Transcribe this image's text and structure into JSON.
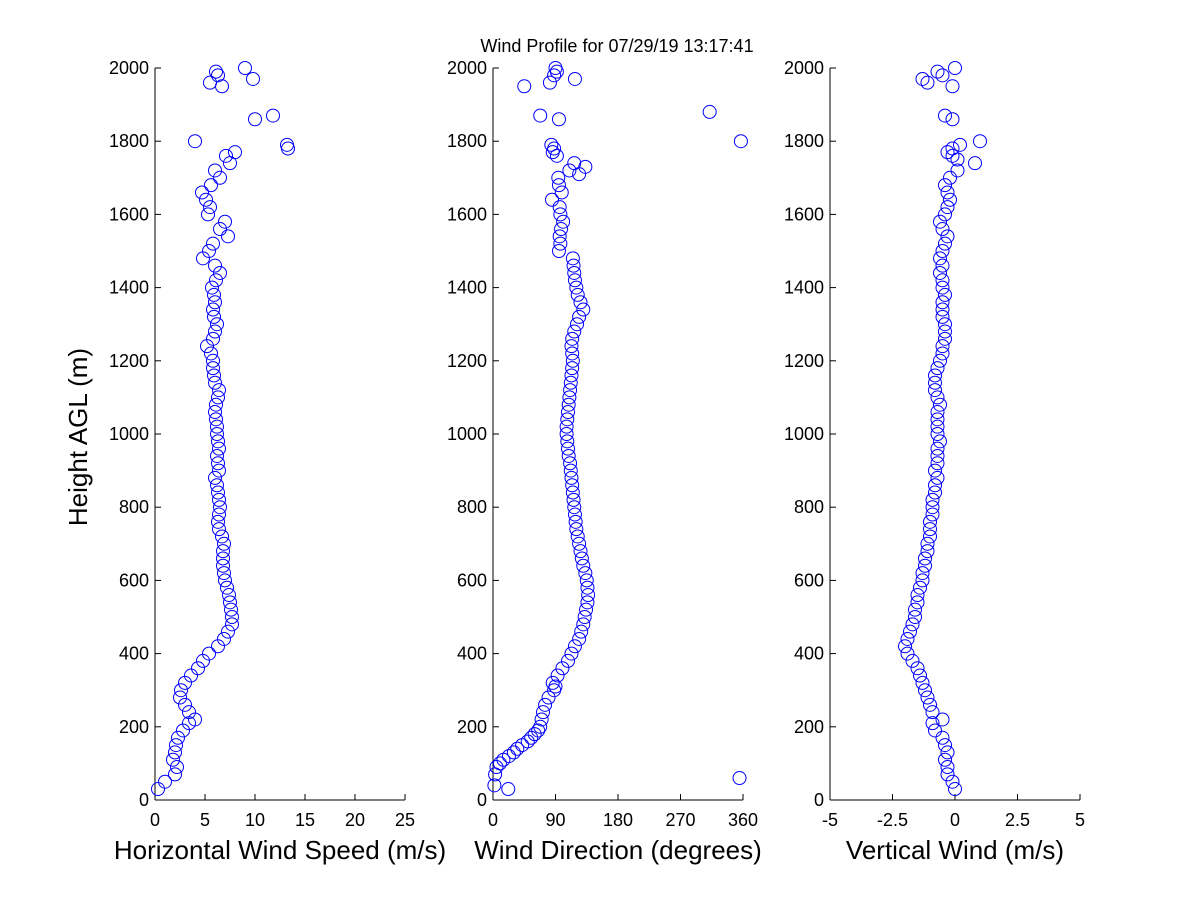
{
  "figure": {
    "title": "Wind Profile for  07/29/19 13:17:41",
    "marker_color": "#0000ff"
  },
  "chart_data": [
    {
      "type": "scatter",
      "name": "speed",
      "xlabel": "Horizontal Wind Speed (m/s)",
      "ylabel": "Height AGL (m)",
      "xlim": [
        0,
        25
      ],
      "ylim": [
        0,
        2000
      ],
      "xticks": [
        0,
        5,
        10,
        15,
        20,
        25
      ],
      "xtick_labels": [
        "0",
        "5",
        "10",
        "15",
        "20",
        "25"
      ],
      "yticks": [
        0,
        200,
        400,
        600,
        800,
        1000,
        1200,
        1400,
        1600,
        1800,
        2000
      ],
      "ytick_labels": [
        "0",
        "200",
        "400",
        "600",
        "800",
        "1000",
        "1200",
        "1400",
        "1600",
        "1800",
        "2000"
      ],
      "grid": false,
      "profile": [
        [
          30,
          0.3
        ],
        [
          50,
          1.0
        ],
        [
          70,
          2.0
        ],
        [
          90,
          2.2
        ],
        [
          110,
          1.8
        ],
        [
          130,
          2.0
        ],
        [
          150,
          2.1
        ],
        [
          170,
          2.3
        ],
        [
          190,
          2.8
        ],
        [
          210,
          3.4
        ],
        [
          220,
          4.0
        ],
        [
          240,
          3.4
        ],
        [
          260,
          3.0
        ],
        [
          280,
          2.5
        ],
        [
          300,
          2.6
        ],
        [
          320,
          3.0
        ],
        [
          340,
          3.6
        ],
        [
          360,
          4.3
        ],
        [
          380,
          4.8
        ],
        [
          400,
          5.4
        ],
        [
          420,
          6.3
        ],
        [
          440,
          6.9
        ],
        [
          460,
          7.3
        ],
        [
          480,
          7.7
        ],
        [
          500,
          7.7
        ],
        [
          520,
          7.6
        ],
        [
          540,
          7.5
        ],
        [
          560,
          7.4
        ],
        [
          580,
          7.2
        ],
        [
          600,
          7.0
        ],
        [
          620,
          6.9
        ],
        [
          640,
          6.8
        ],
        [
          660,
          6.8
        ],
        [
          680,
          6.8
        ],
        [
          700,
          6.9
        ],
        [
          720,
          6.7
        ],
        [
          740,
          6.4
        ],
        [
          760,
          6.3
        ],
        [
          780,
          6.4
        ],
        [
          800,
          6.5
        ],
        [
          820,
          6.4
        ],
        [
          840,
          6.3
        ],
        [
          860,
          6.2
        ],
        [
          880,
          6.0
        ],
        [
          900,
          6.4
        ],
        [
          920,
          6.3
        ],
        [
          940,
          6.2
        ],
        [
          960,
          6.4
        ],
        [
          980,
          6.3
        ],
        [
          1000,
          6.2
        ],
        [
          1020,
          6.2
        ],
        [
          1040,
          6.1
        ],
        [
          1060,
          6.0
        ],
        [
          1080,
          6.1
        ],
        [
          1100,
          6.3
        ],
        [
          1120,
          6.4
        ],
        [
          1140,
          6.0
        ],
        [
          1160,
          5.9
        ],
        [
          1180,
          5.8
        ],
        [
          1200,
          5.8
        ],
        [
          1220,
          5.6
        ],
        [
          1240,
          5.2
        ],
        [
          1260,
          5.8
        ],
        [
          1280,
          6.0
        ],
        [
          1300,
          6.2
        ],
        [
          1320,
          5.9
        ],
        [
          1340,
          5.8
        ],
        [
          1360,
          6.0
        ],
        [
          1380,
          5.9
        ],
        [
          1400,
          5.7
        ],
        [
          1420,
          6.1
        ],
        [
          1440,
          6.5
        ],
        [
          1460,
          6.0
        ],
        [
          1480,
          4.8
        ],
        [
          1500,
          5.4
        ],
        [
          1520,
          5.8
        ],
        [
          1540,
          7.3
        ],
        [
          1560,
          6.5
        ],
        [
          1580,
          7.0
        ],
        [
          1600,
          5.3
        ],
        [
          1620,
          5.5
        ],
        [
          1640,
          5.1
        ],
        [
          1660,
          4.7
        ],
        [
          1680,
          5.6
        ],
        [
          1700,
          6.5
        ],
        [
          1720,
          6.0
        ],
        [
          1740,
          7.5
        ],
        [
          1760,
          7.1
        ],
        [
          1770,
          8.0
        ],
        [
          1780,
          13.3
        ],
        [
          1790,
          13.2
        ],
        [
          1800,
          4.0
        ],
        [
          1860,
          10.0
        ],
        [
          1870,
          11.8
        ],
        [
          1950,
          6.7
        ],
        [
          1960,
          5.5
        ],
        [
          1970,
          9.8
        ],
        [
          1980,
          6.3
        ],
        [
          1990,
          6.1
        ],
        [
          2000,
          9.0
        ]
      ]
    },
    {
      "type": "scatter",
      "name": "direction",
      "xlabel": "Wind Direction (degrees)",
      "xlim": [
        0,
        360
      ],
      "ylim": [
        0,
        2000
      ],
      "xticks": [
        0,
        90,
        180,
        270,
        360
      ],
      "xtick_labels": [
        "0",
        "90",
        "180",
        "270",
        "360"
      ],
      "yticks": [
        0,
        200,
        400,
        600,
        800,
        1000,
        1200,
        1400,
        1600,
        1800,
        2000
      ],
      "ytick_labels": [
        "0",
        "200",
        "400",
        "600",
        "800",
        "1000",
        "1200",
        "1400",
        "1600",
        "1800",
        "2000"
      ],
      "grid": false,
      "profile": [
        [
          30,
          22
        ],
        [
          40,
          2
        ],
        [
          60,
          355
        ],
        [
          70,
          3
        ],
        [
          90,
          5
        ],
        [
          100,
          10
        ],
        [
          110,
          15
        ],
        [
          120,
          23
        ],
        [
          130,
          30
        ],
        [
          140,
          35
        ],
        [
          150,
          42
        ],
        [
          160,
          50
        ],
        [
          170,
          55
        ],
        [
          180,
          60
        ],
        [
          190,
          65
        ],
        [
          200,
          68
        ],
        [
          220,
          70
        ],
        [
          240,
          72
        ],
        [
          260,
          75
        ],
        [
          280,
          80
        ],
        [
          300,
          88
        ],
        [
          310,
          90
        ],
        [
          320,
          86
        ],
        [
          340,
          93
        ],
        [
          360,
          100
        ],
        [
          380,
          108
        ],
        [
          400,
          113
        ],
        [
          420,
          118
        ],
        [
          440,
          124
        ],
        [
          460,
          127
        ],
        [
          480,
          130
        ],
        [
          500,
          132
        ],
        [
          520,
          134
        ],
        [
          540,
          136
        ],
        [
          560,
          137
        ],
        [
          580,
          136
        ],
        [
          600,
          135
        ],
        [
          620,
          133
        ],
        [
          640,
          130
        ],
        [
          660,
          128
        ],
        [
          680,
          126
        ],
        [
          700,
          124
        ],
        [
          720,
          122
        ],
        [
          740,
          120
        ],
        [
          760,
          119
        ],
        [
          780,
          118
        ],
        [
          800,
          117
        ],
        [
          820,
          116
        ],
        [
          840,
          115
        ],
        [
          860,
          114
        ],
        [
          880,
          113
        ],
        [
          900,
          112
        ],
        [
          920,
          111
        ],
        [
          940,
          109
        ],
        [
          960,
          108
        ],
        [
          980,
          107
        ],
        [
          1000,
          106
        ],
        [
          1020,
          106
        ],
        [
          1040,
          107
        ],
        [
          1060,
          108
        ],
        [
          1080,
          109
        ],
        [
          1100,
          110
        ],
        [
          1120,
          111
        ],
        [
          1140,
          112
        ],
        [
          1160,
          113
        ],
        [
          1180,
          114
        ],
        [
          1200,
          115
        ],
        [
          1220,
          114
        ],
        [
          1240,
          113
        ],
        [
          1260,
          114
        ],
        [
          1280,
          117
        ],
        [
          1300,
          121
        ],
        [
          1320,
          124
        ],
        [
          1340,
          130
        ],
        [
          1360,
          126
        ],
        [
          1380,
          122
        ],
        [
          1400,
          120
        ],
        [
          1420,
          118
        ],
        [
          1440,
          117
        ],
        [
          1460,
          116
        ],
        [
          1480,
          115
        ],
        [
          1500,
          95
        ],
        [
          1520,
          97
        ],
        [
          1540,
          96
        ],
        [
          1560,
          98
        ],
        [
          1580,
          101
        ],
        [
          1600,
          97
        ],
        [
          1620,
          96
        ],
        [
          1640,
          85
        ],
        [
          1660,
          99
        ],
        [
          1680,
          95
        ],
        [
          1700,
          94
        ],
        [
          1710,
          124
        ],
        [
          1720,
          110
        ],
        [
          1730,
          133
        ],
        [
          1740,
          117
        ],
        [
          1760,
          92
        ],
        [
          1770,
          86
        ],
        [
          1780,
          88
        ],
        [
          1790,
          84
        ],
        [
          1800,
          357
        ],
        [
          1860,
          95
        ],
        [
          1870,
          68
        ],
        [
          1880,
          312
        ],
        [
          1950,
          45
        ],
        [
          1960,
          82
        ],
        [
          1970,
          118
        ],
        [
          1980,
          88
        ],
        [
          1990,
          92
        ],
        [
          2000,
          90
        ]
      ]
    },
    {
      "type": "scatter",
      "name": "vertical",
      "xlabel": "Vertical Wind (m/s)",
      "xlim": [
        -5,
        5
      ],
      "ylim": [
        0,
        2000
      ],
      "xticks": [
        -5,
        -2.5,
        0,
        2.5,
        5
      ],
      "xtick_labels": [
        "-5",
        "-2.5",
        "0",
        "2.5",
        "5"
      ],
      "yticks": [
        0,
        200,
        400,
        600,
        800,
        1000,
        1200,
        1400,
        1600,
        1800,
        2000
      ],
      "ytick_labels": [
        "0",
        "200",
        "400",
        "600",
        "800",
        "1000",
        "1200",
        "1400",
        "1600",
        "1800",
        "2000"
      ],
      "grid": false,
      "profile": [
        [
          30,
          0.0
        ],
        [
          50,
          -0.1
        ],
        [
          70,
          -0.3
        ],
        [
          90,
          -0.3
        ],
        [
          110,
          -0.4
        ],
        [
          130,
          -0.3
        ],
        [
          150,
          -0.4
        ],
        [
          170,
          -0.5
        ],
        [
          190,
          -0.8
        ],
        [
          210,
          -0.9
        ],
        [
          220,
          -0.5
        ],
        [
          240,
          -0.9
        ],
        [
          260,
          -1.0
        ],
        [
          280,
          -1.1
        ],
        [
          300,
          -1.2
        ],
        [
          320,
          -1.3
        ],
        [
          340,
          -1.4
        ],
        [
          360,
          -1.5
        ],
        [
          380,
          -1.7
        ],
        [
          400,
          -1.9
        ],
        [
          420,
          -2.0
        ],
        [
          440,
          -1.9
        ],
        [
          460,
          -1.8
        ],
        [
          480,
          -1.7
        ],
        [
          500,
          -1.6
        ],
        [
          520,
          -1.6
        ],
        [
          540,
          -1.5
        ],
        [
          560,
          -1.5
        ],
        [
          580,
          -1.4
        ],
        [
          600,
          -1.3
        ],
        [
          620,
          -1.3
        ],
        [
          640,
          -1.2
        ],
        [
          660,
          -1.2
        ],
        [
          680,
          -1.1
        ],
        [
          700,
          -1.1
        ],
        [
          720,
          -1.0
        ],
        [
          740,
          -1.0
        ],
        [
          760,
          -1.0
        ],
        [
          780,
          -0.9
        ],
        [
          800,
          -0.9
        ],
        [
          820,
          -0.9
        ],
        [
          840,
          -0.8
        ],
        [
          860,
          -0.8
        ],
        [
          880,
          -0.7
        ],
        [
          900,
          -0.8
        ],
        [
          920,
          -0.7
        ],
        [
          940,
          -0.7
        ],
        [
          960,
          -0.7
        ],
        [
          980,
          -0.6
        ],
        [
          1000,
          -0.7
        ],
        [
          1020,
          -0.7
        ],
        [
          1040,
          -0.7
        ],
        [
          1060,
          -0.7
        ],
        [
          1080,
          -0.6
        ],
        [
          1100,
          -0.7
        ],
        [
          1120,
          -0.8
        ],
        [
          1140,
          -0.8
        ],
        [
          1160,
          -0.8
        ],
        [
          1180,
          -0.7
        ],
        [
          1200,
          -0.6
        ],
        [
          1220,
          -0.5
        ],
        [
          1240,
          -0.5
        ],
        [
          1260,
          -0.4
        ],
        [
          1280,
          -0.4
        ],
        [
          1300,
          -0.4
        ],
        [
          1320,
          -0.5
        ],
        [
          1340,
          -0.5
        ],
        [
          1360,
          -0.5
        ],
        [
          1380,
          -0.4
        ],
        [
          1400,
          -0.5
        ],
        [
          1420,
          -0.5
        ],
        [
          1440,
          -0.6
        ],
        [
          1460,
          -0.5
        ],
        [
          1480,
          -0.6
        ],
        [
          1500,
          -0.5
        ],
        [
          1520,
          -0.4
        ],
        [
          1540,
          -0.3
        ],
        [
          1560,
          -0.5
        ],
        [
          1580,
          -0.6
        ],
        [
          1600,
          -0.4
        ],
        [
          1620,
          -0.3
        ],
        [
          1640,
          -0.2
        ],
        [
          1660,
          -0.3
        ],
        [
          1680,
          -0.4
        ],
        [
          1700,
          -0.2
        ],
        [
          1720,
          0.1
        ],
        [
          1740,
          0.8
        ],
        [
          1750,
          0.1
        ],
        [
          1760,
          -0.1
        ],
        [
          1770,
          -0.3
        ],
        [
          1780,
          -0.1
        ],
        [
          1790,
          0.2
        ],
        [
          1800,
          1.0
        ],
        [
          1860,
          -0.1
        ],
        [
          1870,
          -0.4
        ],
        [
          1950,
          -0.1
        ],
        [
          1960,
          -1.1
        ],
        [
          1970,
          -1.3
        ],
        [
          1980,
          -0.5
        ],
        [
          1990,
          -0.7
        ],
        [
          2000,
          0.0
        ]
      ]
    }
  ]
}
